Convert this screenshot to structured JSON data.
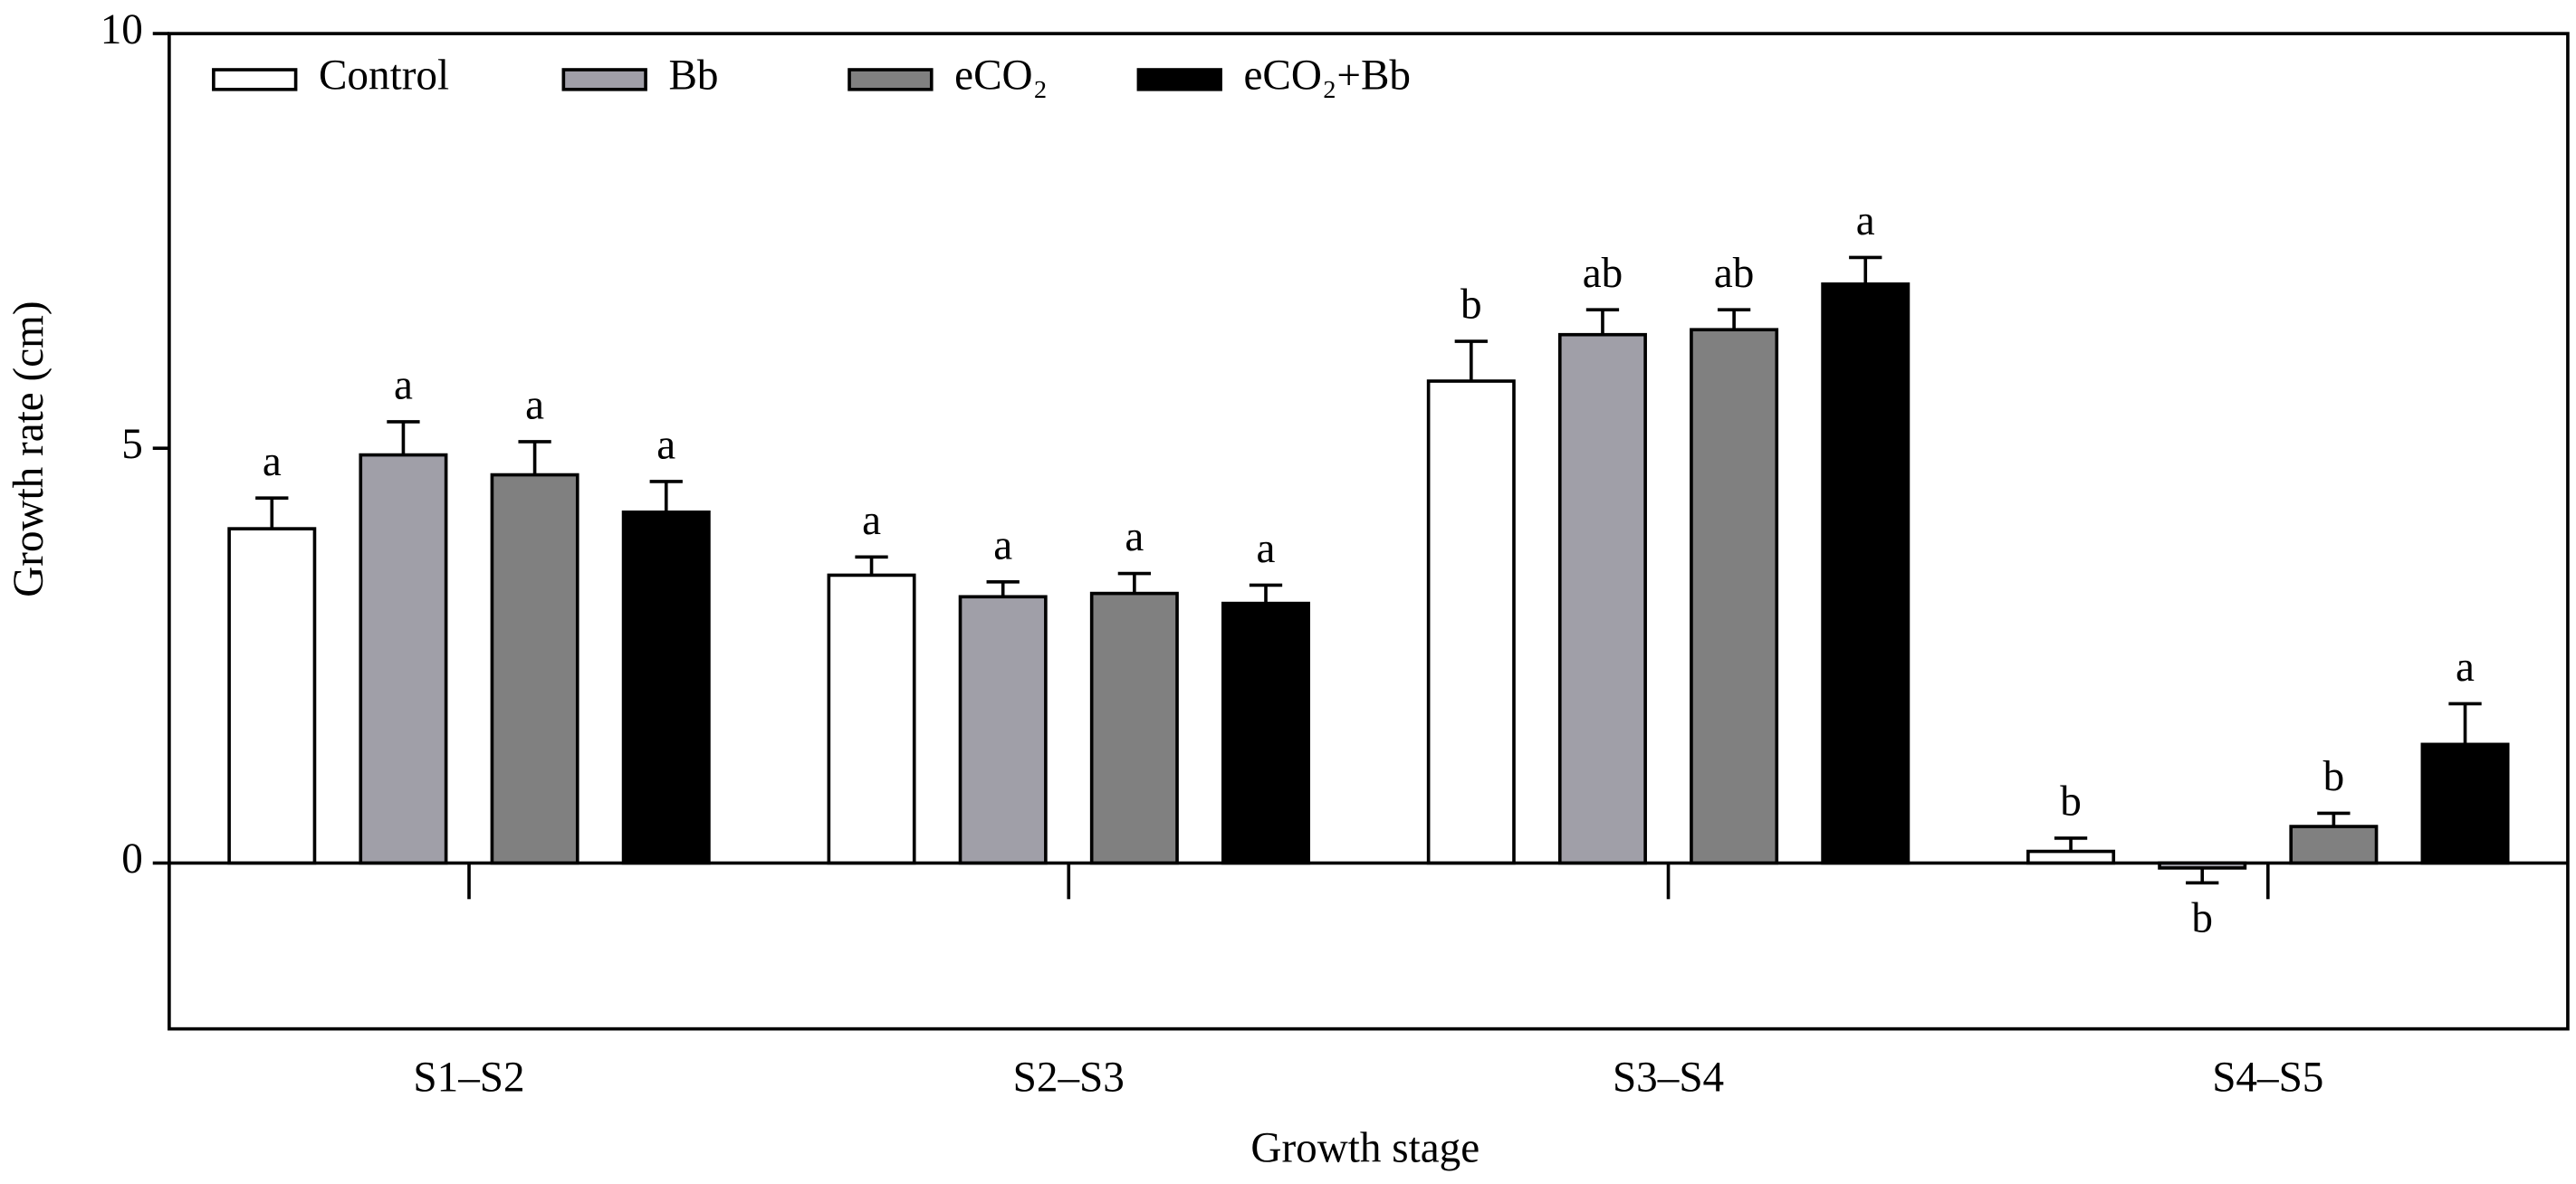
{
  "chart_data": {
    "type": "bar",
    "x_label": "Growth stage",
    "y_label": "Growth rate (cm)",
    "categories": [
      "S1–S2",
      "S2–S3",
      "S3–S4",
      "S4–S5"
    ],
    "ylim": [
      -2,
      10
    ],
    "yticks": [
      0,
      5,
      10
    ],
    "series": [
      {
        "name": "Control",
        "color": "#ffffff",
        "values": [
          4.03,
          3.47,
          5.81,
          0.14
        ],
        "errors": [
          0.37,
          0.22,
          0.48,
          0.16
        ],
        "letters": [
          "a",
          "a",
          "b",
          "b"
        ]
      },
      {
        "name": "Bb",
        "color": "#a09fa8",
        "values": [
          4.92,
          3.21,
          6.37,
          -0.06
        ],
        "errors": [
          0.4,
          0.18,
          0.3,
          0.18
        ],
        "letters": [
          "a",
          "a",
          "ab",
          "b"
        ]
      },
      {
        "name": "eCO₂",
        "color": "#808080",
        "values": [
          4.68,
          3.25,
          6.43,
          0.44
        ],
        "errors": [
          0.4,
          0.24,
          0.24,
          0.16
        ],
        "letters": [
          "a",
          "a",
          "ab",
          "b"
        ]
      },
      {
        "name": "eCO₂+Bb",
        "color": "#000000",
        "values": [
          4.23,
          3.13,
          6.98,
          1.43
        ],
        "errors": [
          0.37,
          0.22,
          0.32,
          0.49
        ],
        "letters": [
          "a",
          "a",
          "a",
          "a"
        ]
      }
    ]
  }
}
